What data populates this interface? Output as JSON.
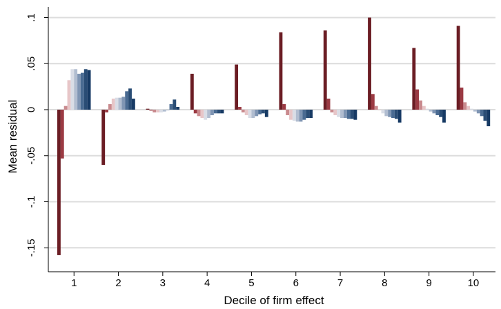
{
  "chart_data": {
    "type": "bar",
    "xlabel": "Decile of firm effect",
    "ylabel": "Mean residual",
    "categories": [
      "1",
      "2",
      "3",
      "4",
      "5",
      "6",
      "7",
      "8",
      "9",
      "10"
    ],
    "ylim": [
      -0.16,
      0.1
    ],
    "yticks": [
      ".1",
      ".05",
      "0",
      "-.05",
      "-.1",
      "-.15"
    ],
    "ytick_values": [
      0.1,
      0.05,
      0,
      -0.05,
      -0.1,
      -0.15
    ],
    "grid": true,
    "legend": "none",
    "colors": [
      "#6b1d24",
      "#9b3a43",
      "#c98a8e",
      "#e7c6c8",
      "#d9dde6",
      "#b1bdd0",
      "#7f95b3",
      "#4a6b92",
      "#2a4d75",
      "#173a64"
    ],
    "series": [
      {
        "values": [
          -0.158,
          -0.06,
          0.001,
          0.039,
          0.049,
          0.084,
          0.086,
          0.1,
          0.067,
          0.091
        ]
      },
      {
        "values": [
          -0.053,
          -0.003,
          -0.001,
          -0.004,
          0.003,
          0.006,
          0.012,
          0.017,
          0.022,
          0.024
        ]
      },
      {
        "values": [
          0.004,
          0.006,
          -0.003,
          -0.007,
          -0.003,
          -0.006,
          -0.003,
          0.004,
          0.01,
          0.008
        ]
      },
      {
        "values": [
          0.032,
          0.012,
          -0.003,
          -0.009,
          -0.006,
          -0.011,
          -0.006,
          0.0,
          0.004,
          0.004
        ]
      },
      {
        "values": [
          0.044,
          0.013,
          -0.003,
          -0.011,
          -0.009,
          -0.012,
          -0.008,
          -0.004,
          0.001,
          0.001
        ]
      },
      {
        "values": [
          0.044,
          0.013,
          -0.002,
          -0.009,
          -0.009,
          -0.013,
          -0.009,
          -0.007,
          -0.002,
          -0.002
        ]
      },
      {
        "values": [
          0.039,
          0.014,
          0.0,
          -0.006,
          -0.007,
          -0.013,
          -0.009,
          -0.008,
          -0.004,
          -0.004
        ]
      },
      {
        "values": [
          0.04,
          0.02,
          0.006,
          -0.004,
          -0.005,
          -0.011,
          -0.01,
          -0.009,
          -0.006,
          -0.007
        ]
      },
      {
        "values": [
          0.044,
          0.023,
          0.011,
          -0.004,
          -0.004,
          -0.009,
          -0.01,
          -0.01,
          -0.008,
          -0.012
        ]
      },
      {
        "values": [
          0.043,
          0.012,
          0.003,
          -0.004,
          -0.008,
          -0.009,
          -0.011,
          -0.014,
          -0.014,
          -0.018
        ]
      }
    ]
  }
}
